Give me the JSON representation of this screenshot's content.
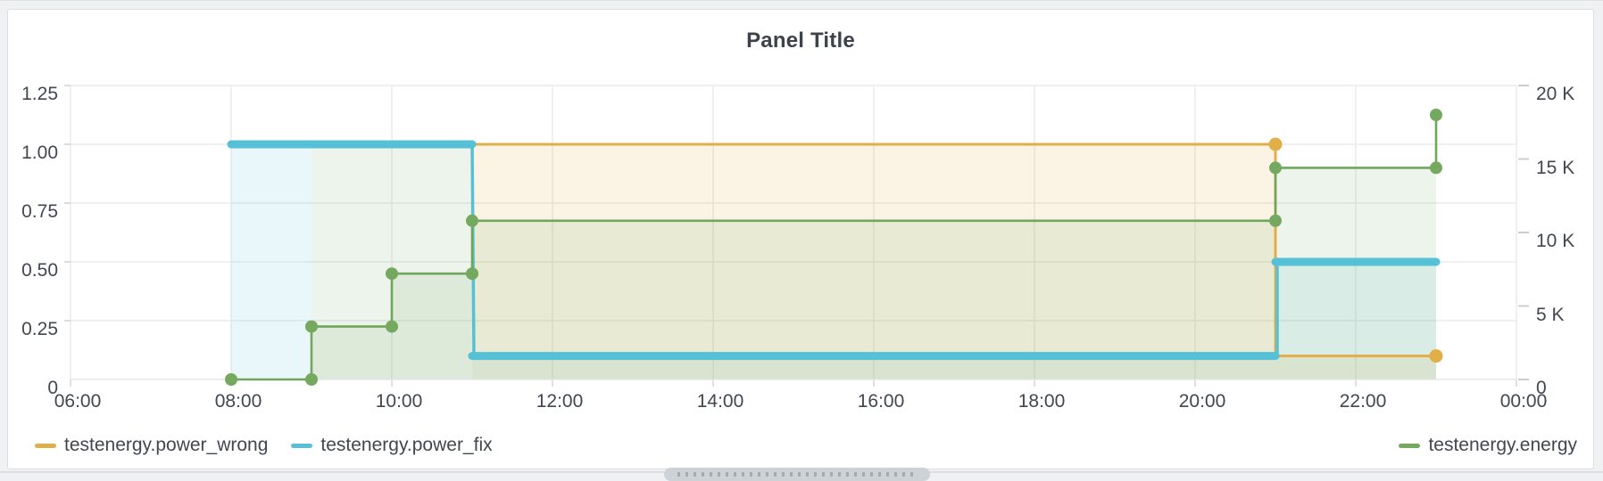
{
  "panel": {
    "title": "Panel Title"
  },
  "legend": {
    "left_items": [
      {
        "label": "testenergy.power_wrong",
        "color": "#e2ae47"
      },
      {
        "label": "testenergy.power_fix",
        "color": "#56c0d7"
      }
    ],
    "right_items": [
      {
        "label": "testenergy.energy",
        "color": "#74a95f"
      }
    ]
  },
  "axes": {
    "left": {
      "ticks": [
        {
          "v": 0,
          "label": "0"
        },
        {
          "v": 0.25,
          "label": "0.25"
        },
        {
          "v": 0.5,
          "label": "0.50"
        },
        {
          "v": 0.75,
          "label": "0.75"
        },
        {
          "v": 1,
          "label": "1.00"
        },
        {
          "v": 1.25,
          "label": "1.25"
        }
      ]
    },
    "right": {
      "ticks": [
        {
          "v": 0,
          "label": "0"
        },
        {
          "v": 5000,
          "label": "5 K"
        },
        {
          "v": 10000,
          "label": "10 K"
        },
        {
          "v": 15000,
          "label": "15 K"
        },
        {
          "v": 20000,
          "label": "20 K"
        }
      ]
    },
    "x": {
      "ticks": [
        {
          "t": 6,
          "label": "06:00"
        },
        {
          "t": 8,
          "label": "08:00"
        },
        {
          "t": 10,
          "label": "10:00"
        },
        {
          "t": 12,
          "label": "12:00"
        },
        {
          "t": 14,
          "label": "14:00"
        },
        {
          "t": 16,
          "label": "16:00"
        },
        {
          "t": 18,
          "label": "18:00"
        },
        {
          "t": 20,
          "label": "20:00"
        },
        {
          "t": 22,
          "label": "22:00"
        },
        {
          "t": 24,
          "label": "00:00"
        }
      ]
    }
  },
  "chart_data": {
    "type": "line",
    "title": "Panel Title",
    "style": "stepped time series with area fill",
    "x_unit": "time of day (hours)",
    "x_range": [
      6,
      24
    ],
    "left_axis": {
      "range": [
        0,
        1.25
      ],
      "ticks": [
        0,
        0.25,
        0.5,
        0.75,
        1.0,
        1.25
      ]
    },
    "right_axis": {
      "range": [
        0,
        20000
      ],
      "ticks": [
        0,
        5000,
        10000,
        15000,
        20000
      ]
    },
    "grid": true,
    "legend_position": "bottom",
    "series": [
      {
        "name": "testenergy.power_wrong",
        "color": "#e2ae47",
        "axis": "left",
        "line_width": 3,
        "points": [
          [
            11,
            1.0
          ],
          [
            21,
            1.0
          ],
          [
            21,
            0.1
          ],
          [
            23,
            0.1
          ]
        ],
        "markers": [
          [
            21,
            1.0
          ],
          [
            23,
            0.1
          ]
        ]
      },
      {
        "name": "testenergy.power_fix",
        "color": "#56c0d7",
        "axis": "left",
        "line_width": 9,
        "points": [
          [
            8,
            1.0
          ],
          [
            11,
            1.0
          ],
          [
            11,
            0.1
          ],
          [
            21,
            0.1
          ],
          [
            21,
            0.5
          ],
          [
            23,
            0.5
          ]
        ],
        "markers": []
      },
      {
        "name": "testenergy.energy",
        "color": "#6fa65b",
        "axis": "right",
        "line_width": 2.6,
        "points": [
          [
            8,
            0
          ],
          [
            9,
            0
          ],
          [
            9,
            3600
          ],
          [
            10,
            3600
          ],
          [
            10,
            7200
          ],
          [
            11,
            7200
          ],
          [
            11,
            10800
          ],
          [
            21,
            10800
          ],
          [
            21,
            14400
          ],
          [
            23,
            14400
          ],
          [
            23,
            18000
          ]
        ],
        "markers": [
          [
            8,
            0
          ],
          [
            9,
            0
          ],
          [
            9,
            3600
          ],
          [
            10,
            3600
          ],
          [
            10,
            7200
          ],
          [
            11,
            7200
          ],
          [
            11,
            10800
          ],
          [
            21,
            10800
          ],
          [
            21,
            14400
          ],
          [
            23,
            14400
          ],
          [
            23,
            18000
          ]
        ]
      }
    ]
  }
}
